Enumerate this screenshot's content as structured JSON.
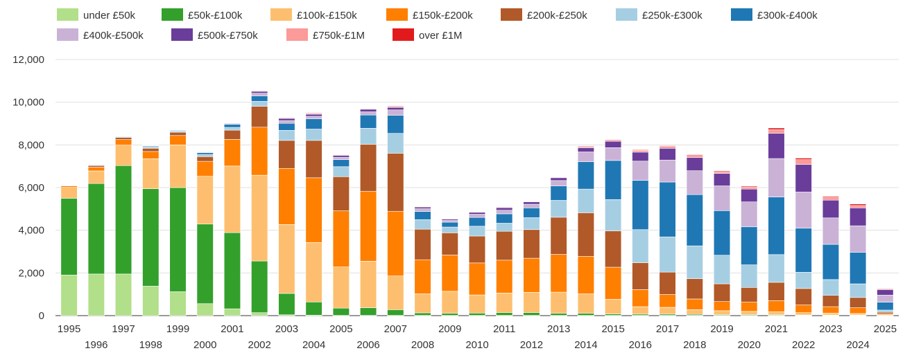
{
  "chart_data": {
    "type": "bar",
    "stacked": true,
    "title": "",
    "xlabel": "",
    "ylabel": "",
    "ylim": [
      0,
      12000
    ],
    "yticks": [
      0,
      2000,
      4000,
      6000,
      8000,
      10000,
      12000
    ],
    "ytick_labels": [
      "0",
      "2,000",
      "4,000",
      "6,000",
      "8,000",
      "10,000",
      "12,000"
    ],
    "grid": true,
    "legend_position": "top-left",
    "categories": [
      "1995",
      "1996",
      "1997",
      "1998",
      "1999",
      "2000",
      "2001",
      "2002",
      "2003",
      "2004",
      "2005",
      "2006",
      "2007",
      "2008",
      "2009",
      "2010",
      "2011",
      "2012",
      "2013",
      "2014",
      "2015",
      "2016",
      "2017",
      "2018",
      "2019",
      "2020",
      "2021",
      "2022",
      "2023",
      "2024",
      "2025"
    ],
    "series": [
      {
        "name": "under £50k",
        "color": "#b2df8a",
        "values": [
          1900,
          1950,
          1950,
          1380,
          1120,
          560,
          320,
          140,
          40,
          20,
          10,
          10,
          10,
          10,
          10,
          10,
          10,
          10,
          10,
          10,
          10,
          10,
          10,
          10,
          10,
          10,
          10,
          10,
          10,
          10,
          0
        ]
      },
      {
        "name": "£50k-£100k",
        "color": "#33a02c",
        "values": [
          3600,
          4240,
          5080,
          4570,
          4880,
          3730,
          3570,
          2420,
          1000,
          620,
          340,
          360,
          270,
          120,
          100,
          110,
          130,
          130,
          100,
          100,
          70,
          60,
          60,
          50,
          40,
          40,
          30,
          20,
          20,
          20,
          10
        ]
      },
      {
        "name": "£100k-£150k",
        "color": "#fdbf6f",
        "values": [
          510,
          590,
          960,
          1400,
          2000,
          2240,
          3120,
          4020,
          3230,
          2790,
          1930,
          2180,
          1580,
          890,
          1030,
          850,
          920,
          950,
          990,
          910,
          690,
          350,
          320,
          220,
          180,
          150,
          140,
          110,
          90,
          70,
          30
        ]
      },
      {
        "name": "£150k-£200k",
        "color": "#ff7f00",
        "values": [
          70,
          180,
          260,
          340,
          440,
          700,
          1250,
          2250,
          2630,
          3030,
          2630,
          3280,
          3030,
          1600,
          1700,
          1500,
          1540,
          1600,
          1770,
          1760,
          1500,
          800,
          600,
          500,
          430,
          440,
          520,
          360,
          300,
          270,
          50
        ]
      },
      {
        "name": "£200k-£250k",
        "color": "#b15928",
        "values": [
          20,
          70,
          100,
          150,
          150,
          220,
          430,
          980,
          1310,
          1750,
          1600,
          2200,
          2720,
          1430,
          1040,
          1260,
          1350,
          1340,
          1740,
          2040,
          1700,
          1260,
          1050,
          950,
          830,
          680,
          860,
          770,
          530,
          480,
          70
        ]
      },
      {
        "name": "£250k-£300k",
        "color": "#a6cee3",
        "values": [
          10,
          30,
          40,
          60,
          60,
          100,
          130,
          230,
          470,
          530,
          470,
          750,
          930,
          450,
          270,
          460,
          380,
          560,
          790,
          1110,
          1470,
          1550,
          1650,
          1540,
          1340,
          1060,
          1300,
          760,
          740,
          640,
          100
        ]
      },
      {
        "name": "£300k-£400k",
        "color": "#1f78b4",
        "values": [
          10,
          20,
          20,
          40,
          30,
          80,
          140,
          260,
          330,
          480,
          330,
          620,
          850,
          380,
          230,
          410,
          440,
          460,
          680,
          1280,
          1830,
          2310,
          2570,
          2400,
          2090,
          1780,
          2700,
          2070,
          1650,
          1480,
          370
        ]
      },
      {
        "name": "£400k-£500k",
        "color": "#cab2d6",
        "values": [
          10,
          10,
          10,
          20,
          20,
          30,
          40,
          120,
          130,
          120,
          110,
          150,
          250,
          130,
          80,
          150,
          170,
          170,
          250,
          460,
          600,
          900,
          1030,
          1120,
          1160,
          1170,
          1800,
          1690,
          1240,
          1240,
          330
        ]
      },
      {
        "name": "£500k-£750k",
        "color": "#6a3d9a",
        "values": [
          10,
          10,
          10,
          20,
          20,
          30,
          30,
          90,
          100,
          100,
          90,
          120,
          120,
          80,
          60,
          90,
          120,
          110,
          130,
          200,
          300,
          420,
          550,
          620,
          580,
          600,
          1180,
          1290,
          830,
          840,
          260
        ]
      },
      {
        "name": "£750k-£1M",
        "color": "#fb9a99",
        "values": [
          0,
          0,
          0,
          10,
          10,
          10,
          10,
          30,
          30,
          30,
          30,
          30,
          30,
          20,
          20,
          20,
          30,
          20,
          30,
          40,
          50,
          80,
          90,
          90,
          80,
          100,
          170,
          230,
          120,
          110,
          40
        ]
      },
      {
        "name": "over £1M",
        "color": "#e31a1c",
        "values": [
          0,
          0,
          0,
          10,
          10,
          10,
          10,
          20,
          20,
          30,
          20,
          20,
          30,
          10,
          10,
          10,
          20,
          20,
          20,
          30,
          30,
          30,
          30,
          40,
          40,
          40,
          80,
          70,
          50,
          70,
          20
        ]
      }
    ]
  }
}
